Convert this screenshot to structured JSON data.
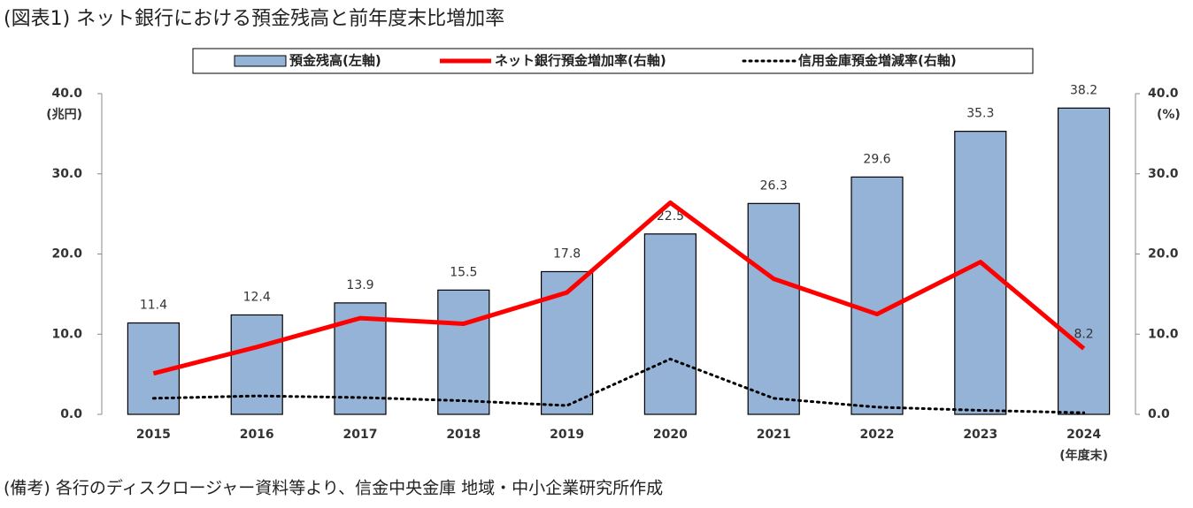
{
  "title": "(図表1) ネット銀行における預金残高と前年度末比増加率",
  "note": "(備考) 各行のディスクロージャー資料等より、信金中央金庫 地域・中小企業研究所作成",
  "chart_data": {
    "type": "combo",
    "categories": [
      "2015",
      "2016",
      "2017",
      "2018",
      "2019",
      "2020",
      "2021",
      "2022",
      "2023",
      "2024"
    ],
    "x_note": "(年度末)",
    "y_unit": "(兆円)",
    "y2_unit": "(%)",
    "series": [
      {
        "name": "預金残高(左軸)",
        "type": "bar",
        "color": "#95b3d7",
        "values": [
          11.4,
          12.4,
          13.9,
          15.5,
          17.8,
          22.5,
          26.3,
          29.6,
          35.3,
          38.2
        ]
      },
      {
        "name": "ネット銀行預金増加率(右軸)",
        "type": "line",
        "axis": "y2",
        "color": "#ff0000",
        "values": [
          5.1,
          8.4,
          12.0,
          11.3,
          15.2,
          26.4,
          16.9,
          12.5,
          19.0,
          8.2
        ],
        "value_labels": [
          null,
          null,
          null,
          null,
          null,
          null,
          null,
          null,
          null,
          "8.2"
        ]
      },
      {
        "name": "信用金庫預金増減率(右軸)",
        "type": "dotted",
        "axis": "y2",
        "color": "#000000",
        "values": [
          2.0,
          2.3,
          2.1,
          1.7,
          1.1,
          6.9,
          2.0,
          0.9,
          0.5,
          0.2
        ]
      }
    ],
    "ylim": [
      0,
      40
    ],
    "yticks": [
      {
        "value": 0,
        "label": "0.0"
      },
      {
        "value": 10,
        "label": "10.0"
      },
      {
        "value": 20,
        "label": "20.0"
      },
      {
        "value": 30,
        "label": "30.0"
      },
      {
        "value": 40,
        "label": "40.0"
      }
    ],
    "y2lim": [
      0,
      40
    ],
    "y2ticks": [
      {
        "value": 0,
        "label": "0.0"
      },
      {
        "value": 10,
        "label": "10.0"
      },
      {
        "value": 20,
        "label": "20.0"
      },
      {
        "value": 30,
        "label": "30.0"
      },
      {
        "value": 40,
        "label": "40.0"
      }
    ],
    "legend": "top"
  }
}
